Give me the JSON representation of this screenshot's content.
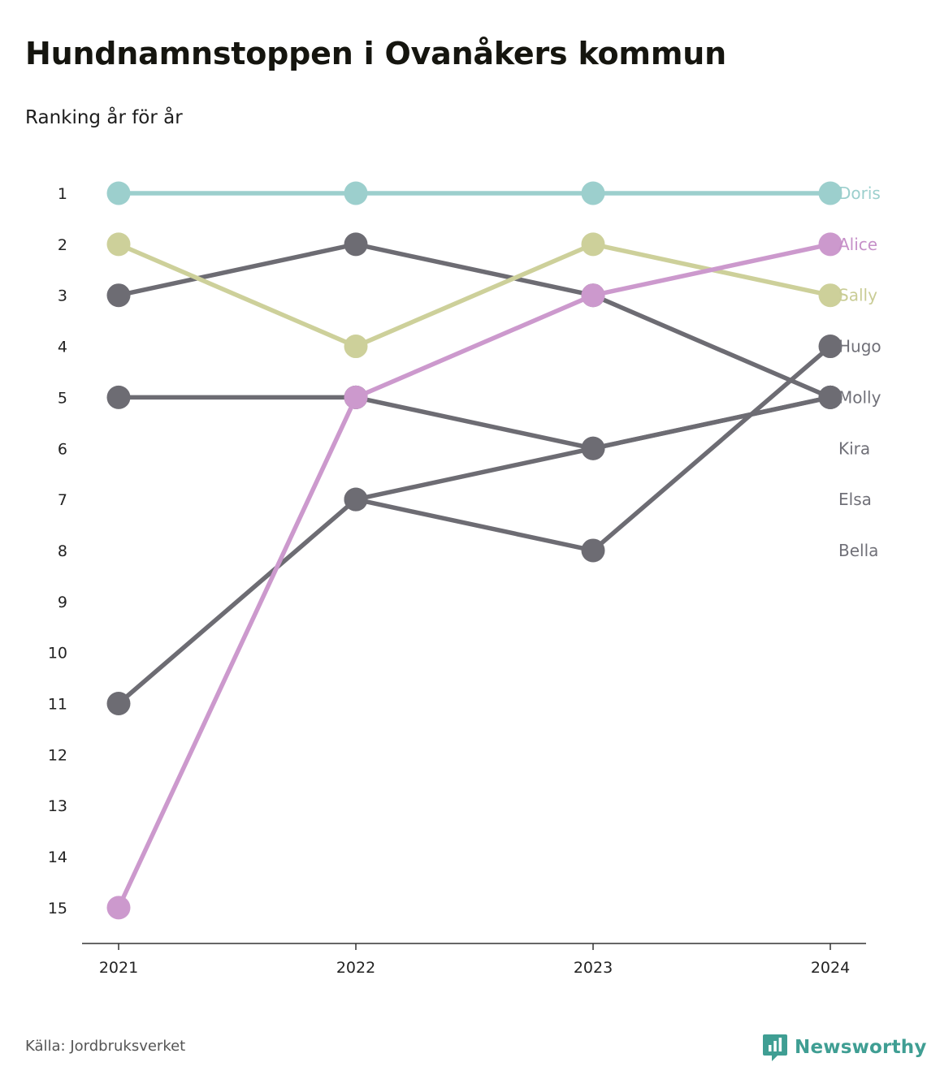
{
  "title": "Hundnamnstoppen i Ovanåkers kommun",
  "subtitle": "Ranking år för år",
  "source": "Källa: Jordbruksverket",
  "brand": {
    "name": "Newsworthy",
    "icon": "newsworthy-logo-icon",
    "color": "#3f9e93"
  },
  "chart_data": {
    "type": "line",
    "title": "Hundnamnstoppen i Ovanåkers kommun",
    "subtitle": "Ranking år för år",
    "x": [
      "2021",
      "2022",
      "2023",
      "2024"
    ],
    "y_ticks": [
      "1",
      "2",
      "3",
      "4",
      "5",
      "6",
      "7",
      "8",
      "9",
      "10",
      "11",
      "12",
      "13",
      "14",
      "15"
    ],
    "ylim": [
      1,
      15
    ],
    "y_inverted": true,
    "grid": false,
    "legend": "direct labels at right end",
    "series": [
      {
        "name": "Doris",
        "values": [
          1,
          1,
          1,
          1
        ],
        "color": "#9ccfcd",
        "label_color": "#9ccfcd"
      },
      {
        "name": "Sally",
        "values": [
          2,
          4,
          2,
          3
        ],
        "color": "#cdd09a",
        "label_color": "#c9cc95"
      },
      {
        "name": "Molly",
        "values": [
          5,
          5,
          6,
          5
        ],
        "color": "#6d6c73",
        "label_color": "#707078"
      },
      {
        "name": "Hugo",
        "values": [
          11,
          7,
          8,
          4
        ],
        "color": "#6d6c73",
        "label_color": "#707078"
      },
      {
        "name": "Alice",
        "values": [
          15,
          5,
          3,
          2
        ],
        "color": "#cc99cd",
        "label_color": "#c690c8"
      },
      {
        "name": "Kira",
        "values": [
          3,
          2,
          3,
          5
        ],
        "color": "#6d6c73",
        "label_color": "#707078"
      },
      {
        "name": "Elsa",
        "values": [
          null,
          5,
          null,
          null
        ],
        "color": "#6d6c73",
        "label_color": "#707078"
      },
      {
        "name": "Bella",
        "values": [
          null,
          7,
          6,
          5
        ],
        "color": "#6d6c73",
        "label_color": "#707078"
      }
    ],
    "end_labels": [
      {
        "text": "Doris",
        "rank": 1,
        "color": "#9ccfcd"
      },
      {
        "text": "Alice",
        "rank": 2,
        "color": "#c690c8"
      },
      {
        "text": "Sally",
        "rank": 3,
        "color": "#c9cc95"
      },
      {
        "text": "Hugo",
        "rank": 4,
        "color": "#707078"
      },
      {
        "text": "Molly",
        "rank": 5,
        "color": "#707078"
      },
      {
        "text": "Kira",
        "rank": 6,
        "color": "#707078"
      },
      {
        "text": "Elsa",
        "rank": 7,
        "color": "#707078"
      },
      {
        "text": "Bella",
        "rank": 8,
        "color": "#707078"
      }
    ]
  }
}
